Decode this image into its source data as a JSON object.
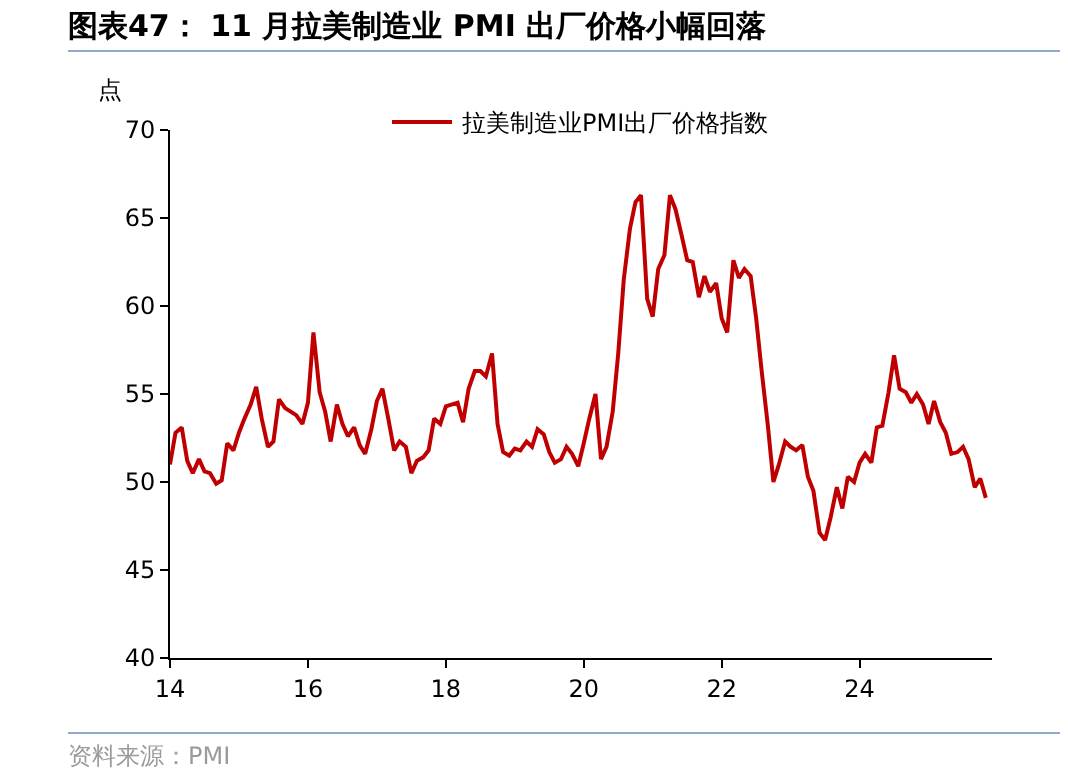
{
  "chart_data": {
    "type": "line",
    "title": "图表47： 11 月拉美制造业 PMI 出厂价格小幅回落",
    "ylabel": "点",
    "annotations": [
      "资料来源：PMI"
    ],
    "legend": "top",
    "grid": false,
    "marker": "none",
    "line_style": "solid",
    "xlim": [
      14,
      25.92
    ],
    "xticks": [
      14,
      16,
      18,
      20,
      22,
      24
    ],
    "ylim": [
      40,
      70
    ],
    "yticks": [
      40,
      45,
      50,
      55,
      60,
      65,
      70
    ],
    "series": [
      {
        "name": "拉美制造业PMI出厂价格指数",
        "color": "#c00000",
        "x": [
          14.0,
          14.08,
          14.17,
          14.25,
          14.33,
          14.42,
          14.5,
          14.58,
          14.67,
          14.75,
          14.83,
          14.92,
          15.0,
          15.08,
          15.17,
          15.25,
          15.33,
          15.42,
          15.5,
          15.58,
          15.67,
          15.75,
          15.83,
          15.92,
          16.0,
          16.08,
          16.17,
          16.25,
          16.33,
          16.42,
          16.5,
          16.58,
          16.67,
          16.75,
          16.83,
          16.92,
          17.0,
          17.08,
          17.17,
          17.25,
          17.33,
          17.42,
          17.5,
          17.58,
          17.67,
          17.75,
          17.83,
          17.92,
          18.0,
          18.08,
          18.17,
          18.25,
          18.33,
          18.42,
          18.5,
          18.58,
          18.67,
          18.75,
          18.83,
          18.92,
          19.0,
          19.08,
          19.17,
          19.25,
          19.33,
          19.42,
          19.5,
          19.58,
          19.67,
          19.75,
          19.83,
          19.92,
          20.0,
          20.08,
          20.17,
          20.25,
          20.33,
          20.42,
          20.5,
          20.58,
          20.67,
          20.75,
          20.83,
          20.92,
          21.0,
          21.08,
          21.17,
          21.25,
          21.33,
          21.42,
          21.5,
          21.58,
          21.67,
          21.75,
          21.83,
          21.92,
          22.0,
          22.08,
          22.17,
          22.25,
          22.33,
          22.42,
          22.5,
          22.58,
          22.67,
          22.75,
          22.83,
          22.92,
          23.0,
          23.08,
          23.17,
          23.25,
          23.33,
          23.42,
          23.5,
          23.58,
          23.67,
          23.75,
          23.83,
          23.92,
          24.0,
          24.08,
          24.17,
          24.25,
          24.33,
          24.42,
          24.5,
          24.58,
          24.67,
          24.75,
          24.83,
          24.92,
          25.0,
          25.08,
          25.17,
          25.25,
          25.33,
          25.42,
          25.5,
          25.58,
          25.67,
          25.75,
          25.83
        ],
        "values": [
          51.0,
          52.8,
          53.1,
          51.2,
          50.5,
          51.3,
          50.6,
          50.5,
          49.9,
          50.1,
          52.2,
          51.8,
          52.8,
          53.6,
          54.4,
          55.4,
          53.6,
          52.0,
          52.3,
          54.7,
          54.2,
          54.0,
          53.8,
          53.3,
          54.5,
          58.5,
          55.1,
          54.0,
          52.3,
          54.4,
          53.3,
          52.6,
          53.1,
          52.1,
          51.6,
          53.0,
          54.6,
          55.3,
          53.5,
          51.8,
          52.3,
          52.0,
          50.5,
          51.2,
          51.4,
          51.8,
          53.6,
          53.3,
          54.3,
          54.4,
          54.5,
          53.4,
          55.3,
          56.3,
          56.3,
          56.0,
          57.3,
          53.3,
          51.7,
          51.5,
          51.9,
          51.8,
          52.3,
          52.0,
          53.0,
          52.7,
          51.7,
          51.1,
          51.3,
          52.0,
          51.6,
          50.9,
          52.2,
          53.6,
          55.0,
          51.3,
          52.0,
          54.0,
          57.3,
          61.5,
          64.4,
          65.9,
          66.3,
          60.4,
          59.4,
          62.1,
          62.9,
          66.3,
          65.5,
          64.0,
          62.6,
          62.5,
          60.5,
          61.7,
          60.8,
          61.3,
          59.3,
          58.5,
          62.6,
          61.6,
          62.1,
          61.7,
          59.3,
          56.3,
          53.2,
          50.0,
          51.0,
          52.3,
          52.0,
          51.8,
          52.1,
          50.3,
          49.5,
          47.1,
          46.7,
          48.0,
          49.7,
          48.5,
          50.3,
          50.0,
          51.1,
          51.6,
          51.1,
          53.1,
          53.2,
          55.1,
          57.2,
          55.3,
          55.1,
          54.5,
          55.0,
          54.4,
          53.3,
          54.6,
          53.4,
          52.8,
          51.6,
          51.7,
          52.0,
          51.3,
          49.7,
          50.2,
          49.1
        ]
      }
    ]
  }
}
